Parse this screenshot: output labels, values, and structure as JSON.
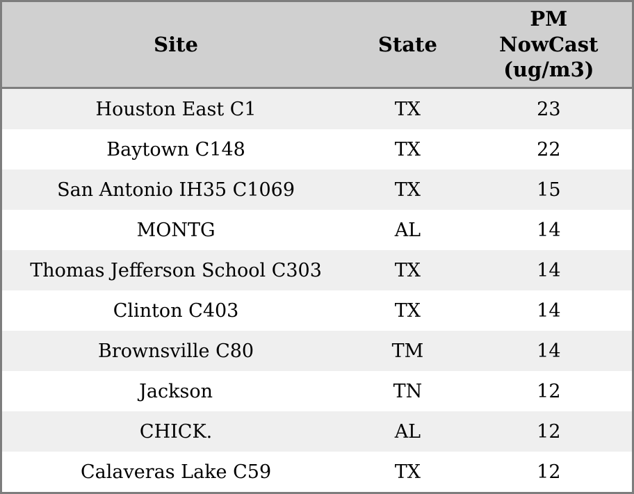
{
  "chart_data": {
    "type": "table",
    "title": "",
    "columns": [
      {
        "key": "site",
        "label": "Site"
      },
      {
        "key": "state",
        "label": "State"
      },
      {
        "key": "value",
        "label": "PM\nNowCast\n(ug/m3)"
      }
    ],
    "rows": [
      {
        "site": "Houston East C1",
        "state": "TX",
        "value": 23
      },
      {
        "site": "Baytown C148",
        "state": "TX",
        "value": 22
      },
      {
        "site": "San Antonio IH35 C1069",
        "state": "TX",
        "value": 15
      },
      {
        "site": "MONTG",
        "state": "AL",
        "value": 14
      },
      {
        "site": "Thomas Jefferson School C303",
        "state": "TX",
        "value": 14
      },
      {
        "site": "Clinton C403",
        "state": "TX",
        "value": 14
      },
      {
        "site": "Brownsville C80",
        "state": "TM",
        "value": 14
      },
      {
        "site": "Jackson",
        "state": "TN",
        "value": 12
      },
      {
        "site": "CHICK.",
        "state": "AL",
        "value": 12
      },
      {
        "site": "Calaveras Lake C59",
        "state": "TX",
        "value": 12
      }
    ]
  },
  "colors": {
    "header_bg": "#d0d0d0",
    "row_alt_bg": "#efefef",
    "row_bg": "#ffffff",
    "border": "#7d7d7d",
    "text": "#000000"
  }
}
